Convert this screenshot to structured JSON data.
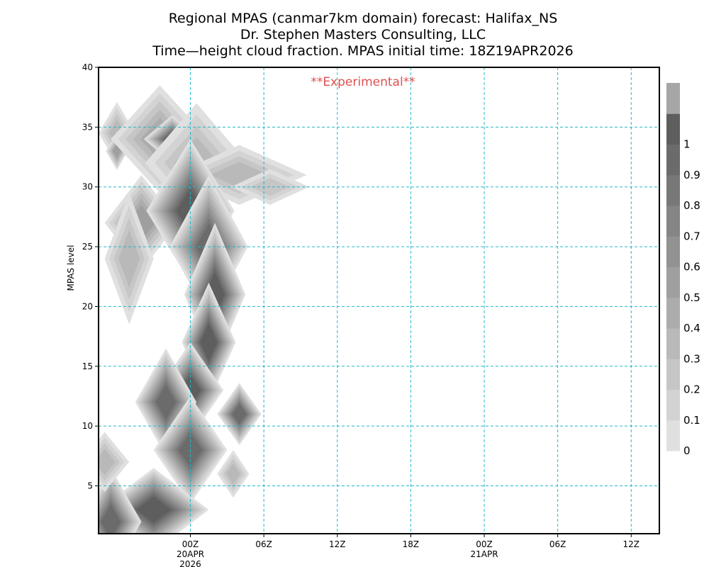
{
  "chart_data": {
    "type": "heatmap",
    "title_lines": [
      "Regional MPAS (canmar7km domain) forecast: Halifax_NS",
      "Dr. Stephen Masters Consulting, LLC",
      "Time—height cloud fraction.    MPAS initial time: 18Z19APR2026"
    ],
    "annotation": "**Experimental**",
    "annotation_color": "#e05050",
    "ylabel": "MPAS level",
    "xlabel": "",
    "ylim": [
      1,
      40
    ],
    "xlim_hours_from_init": [
      -1.5,
      44.3
    ],
    "y_ticks": [
      5,
      10,
      15,
      20,
      25,
      30,
      35,
      40
    ],
    "x_ticks": [
      {
        "hour": 6,
        "label": "00Z",
        "sub": [
          "20APR",
          "2026"
        ]
      },
      {
        "hour": 12,
        "label": "06Z"
      },
      {
        "hour": 18,
        "label": "12Z"
      },
      {
        "hour": 24,
        "label": "18Z"
      },
      {
        "hour": 30,
        "label": "00Z",
        "sub": [
          "21APR"
        ]
      },
      {
        "hour": 36,
        "label": "06Z"
      },
      {
        "hour": 42,
        "label": "12Z"
      }
    ],
    "grid": true,
    "grid_color": "#20b8c8",
    "colorbar": {
      "labels": [
        "0",
        "0.1",
        "0.2",
        "0.3",
        "0.4",
        "0.5",
        "0.6",
        "0.7",
        "0.8",
        "0.9",
        "1"
      ],
      "colors": [
        "#e0e0e0",
        "#d3d3d3",
        "#c6c6c6",
        "#b9b9b9",
        "#acacac",
        "#9f9f9f",
        "#929292",
        "#858585",
        "#787878",
        "#6b6b6b",
        "#5e5e5e",
        "#a6a6a6"
      ]
    },
    "cloud_cells": [
      {
        "hour": 0,
        "level": 34.5,
        "value": 0.3,
        "rh": 1.5,
        "rl": 2.6
      },
      {
        "hour": 0,
        "level": 33,
        "value": 0.5,
        "rh": 0.9,
        "rl": 1.6
      },
      {
        "hour": 3.5,
        "level": 34,
        "value": 0.4,
        "rh": 4.0,
        "rl": 4.5
      },
      {
        "hour": 4.5,
        "level": 34,
        "value": 0.9,
        "rh": 2.3,
        "rl": 2.0
      },
      {
        "hour": 6.5,
        "level": 32,
        "value": 0.3,
        "rh": 4.2,
        "rl": 5.0
      },
      {
        "hour": 10,
        "level": 31,
        "value": 0.3,
        "rh": 5.5,
        "rl": 2.5
      },
      {
        "hour": 12.5,
        "level": 30,
        "value": 0.2,
        "rh": 3.2,
        "rl": 1.5
      },
      {
        "hour": 2,
        "level": 27,
        "value": 0.5,
        "rh": 3.0,
        "rl": 4.0
      },
      {
        "hour": 1,
        "level": 24,
        "value": 0.3,
        "rh": 2.0,
        "rl": 5.5
      },
      {
        "hour": 6,
        "level": 28,
        "value": 0.95,
        "rh": 3.6,
        "rl": 6.0
      },
      {
        "hour": 7.5,
        "level": 25,
        "value": 0.9,
        "rh": 3.2,
        "rl": 6.0
      },
      {
        "hour": 8,
        "level": 21,
        "value": 0.95,
        "rh": 2.5,
        "rl": 6.0
      },
      {
        "hour": 7.5,
        "level": 17,
        "value": 0.95,
        "rh": 2.2,
        "rl": 5.0
      },
      {
        "hour": 6,
        "level": 13,
        "value": 0.95,
        "rh": 2.7,
        "rl": 4.0
      },
      {
        "hour": 4,
        "level": 12,
        "value": 0.9,
        "rh": 2.5,
        "rl": 4.5
      },
      {
        "hour": 6,
        "level": 8,
        "value": 0.9,
        "rh": 3.0,
        "rl": 4.5
      },
      {
        "hour": 10,
        "level": 11,
        "value": 0.9,
        "rh": 1.8,
        "rl": 2.6
      },
      {
        "hour": 9.5,
        "level": 6,
        "value": 0.3,
        "rh": 1.3,
        "rl": 2.0
      },
      {
        "hour": 3,
        "level": 3,
        "value": 0.95,
        "rh": 4.5,
        "rl": 3.5
      },
      {
        "hour": -0.5,
        "level": 2,
        "value": 0.9,
        "rh": 2.5,
        "rl": 4.5
      },
      {
        "hour": -1,
        "level": 7,
        "value": 0.3,
        "rh": 2.0,
        "rl": 2.5
      }
    ]
  }
}
